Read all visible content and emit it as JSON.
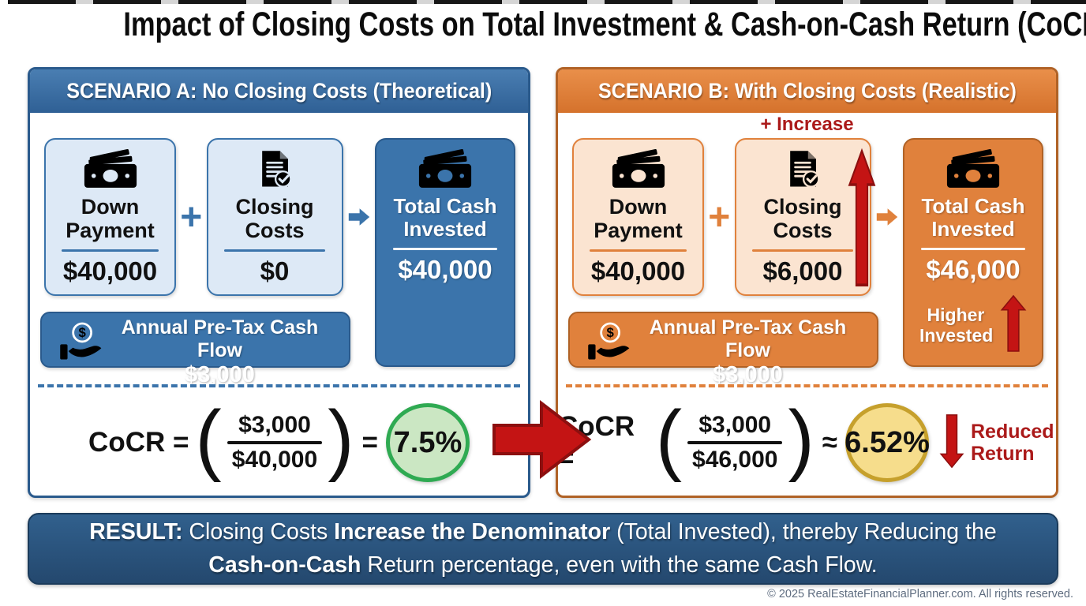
{
  "title": "Impact of Closing Costs on Total Investment & Cash-on-Cash Return (CoCR)",
  "copyright": "© 2025 RealEstateFinancialPlanner.com. All rights reserved.",
  "a": {
    "header": "SCENARIO A: No Closing Costs (Theoretical)",
    "down": {
      "label": "Down Payment",
      "value": "$40,000",
      "icon": "cash-icon"
    },
    "plus": "+",
    "closing": {
      "label": "Closing Costs",
      "value": "$0",
      "icon": "document-check-icon"
    },
    "arrow_icon": "arrow-right-icon",
    "total": {
      "label": "Total Cash Invested",
      "value": "$40,000",
      "icon": "cash-icon"
    },
    "cashflow": {
      "label": "Annual Pre-Tax Cash Flow",
      "value": "$3,000",
      "icon": "hand-coin-icon"
    },
    "formula": {
      "lhs": "CoCR =",
      "lp": "(",
      "num": "$3,000",
      "den": "$40,000",
      "rp": ")",
      "rel": "=",
      "result": "7.5%"
    }
  },
  "b": {
    "header": "SCENARIO B: With Closing Costs (Realistic)",
    "increase_note": "+ Increase",
    "increase_arrow_icon": "arrow-up-icon",
    "down": {
      "label": "Down Payment",
      "value": "$40,000",
      "icon": "cash-icon"
    },
    "plus": "+",
    "closing": {
      "label": "Closing Costs",
      "value": "$6,000",
      "icon": "document-check-icon"
    },
    "arrow_icon": "arrow-right-icon",
    "total": {
      "label": "Total Cash Invested",
      "value": "$46,000",
      "note": "Higher Invested",
      "note_arrow_icon": "arrow-up-icon",
      "icon": "cash-icon"
    },
    "cashflow": {
      "label": "Annual Pre-Tax Cash Flow",
      "value": "$3,000",
      "icon": "hand-coin-icon"
    },
    "formula": {
      "lhs": "CoCR =",
      "lp": "(",
      "num": "$3,000",
      "den": "$46,000",
      "rp": ")",
      "rel": "≈",
      "result": "6.52%"
    },
    "reduced_note": "Reduced Return",
    "reduced_arrow_icon": "arrow-down-icon"
  },
  "big_arrow_icon": "big-arrow-right-icon",
  "result": {
    "lines": [
      [
        {
          "t": "RESULT:",
          "b": true
        },
        {
          "t": " Closing Costs ",
          "b": false
        },
        {
          "t": "Increase the Denominator",
          "b": true
        },
        {
          "t": " (Total Invested), thereby Reducing the",
          "b": false
        }
      ],
      [
        {
          "t": "Cash-on-Cash",
          "b": true
        },
        {
          "t": " Return percentage, even with the same Cash Flow.",
          "b": false
        }
      ]
    ]
  },
  "colors": {
    "blue": "#3b74ab",
    "blue-dark": "#2a5a8c",
    "blue-light": "#dde9f6",
    "orange": "#e0813c",
    "orange-dark": "#b06226",
    "orange-light": "#fbe4d1",
    "red": "#c41414",
    "red-dark": "#8c0f0f",
    "red-text": "#ab1a1a",
    "green-fill": "#cbe7c3",
    "green-border": "#2faa52",
    "yellow-fill": "#f6dd8c",
    "yellow-border": "#c6a02c",
    "result-navy": "#2b5379"
  }
}
